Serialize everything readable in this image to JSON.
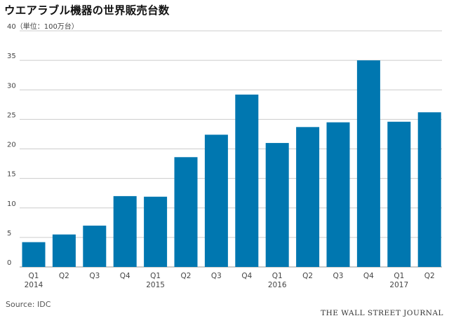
{
  "title": "ウエアラブル機器の世界販売台数",
  "source": "Source: IDC",
  "brand": "THE WALL STREET JOURNAL",
  "colors": {
    "bar": "#0077b0",
    "grid": "#cccccc",
    "axis_text": "#444444"
  },
  "chart_data": {
    "type": "bar",
    "title": "ウエアラブル機器の世界販売台数",
    "ylabel": "（単位：100万台）",
    "ylim": [
      0,
      40
    ],
    "yticks": [
      0,
      5,
      10,
      15,
      20,
      25,
      30,
      35,
      40
    ],
    "grid": true,
    "categories": [
      "Q1\n2014",
      "Q2",
      "Q3",
      "Q4",
      "Q1\n2015",
      "Q2",
      "Q3",
      "Q4",
      "Q1\n2016",
      "Q2",
      "Q3",
      "Q4",
      "Q1\n2017",
      "Q2"
    ],
    "tick_labels": [
      {
        "q": "Q1",
        "year": "2014"
      },
      {
        "q": "Q2",
        "year": ""
      },
      {
        "q": "Q3",
        "year": ""
      },
      {
        "q": "Q4",
        "year": ""
      },
      {
        "q": "Q1",
        "year": "2015"
      },
      {
        "q": "Q2",
        "year": ""
      },
      {
        "q": "Q3",
        "year": ""
      },
      {
        "q": "Q4",
        "year": ""
      },
      {
        "q": "Q1",
        "year": "2016"
      },
      {
        "q": "Q2",
        "year": ""
      },
      {
        "q": "Q3",
        "year": ""
      },
      {
        "q": "Q4",
        "year": ""
      },
      {
        "q": "Q1",
        "year": "2017"
      },
      {
        "q": "Q2",
        "year": ""
      }
    ],
    "values": [
      4.2,
      5.5,
      7.0,
      12.0,
      11.9,
      18.6,
      22.4,
      29.2,
      21.0,
      23.7,
      24.5,
      35.0,
      24.6,
      26.2
    ]
  }
}
